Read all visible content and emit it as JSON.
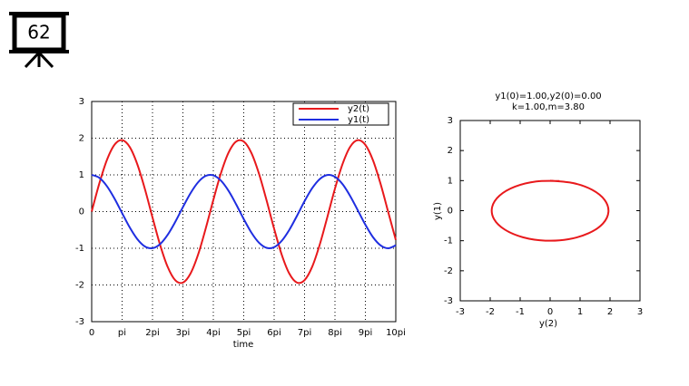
{
  "slide_number": "62",
  "chart_data": [
    {
      "type": "line",
      "xlabel": "time",
      "x": [
        0,
        0.25,
        0.5,
        0.75,
        1,
        1.25,
        1.5,
        1.75,
        2,
        2.25,
        2.5,
        2.75,
        3,
        3.25,
        3.5,
        3.75,
        4,
        4.25,
        4.5,
        4.75,
        5,
        5.25,
        5.5,
        5.75,
        6,
        6.25,
        6.5,
        6.75,
        7,
        7.25,
        7.5,
        7.75,
        8,
        8.25,
        8.5,
        8.75,
        9,
        9.25,
        9.5,
        9.75,
        10
      ],
      "series": [
        {
          "name": "y2(t)",
          "color": "#e8191c",
          "values": [
            0,
            0.764,
            1.405,
            1.822,
            1.947,
            1.76,
            1.29,
            0.614,
            -0.16,
            -0.908,
            -1.51,
            -1.873,
            -1.935,
            -1.688,
            -1.169,
            -0.46,
            0.316,
            1.045,
            1.606,
            1.91,
            1.908,
            1.6,
            1.035,
            0.308,
            -0.47,
            -1.177,
            -1.692,
            -1.935,
            -1.869,
            -1.505,
            -0.898,
            -0.148,
            0.626,
            1.298,
            1.766,
            1.947,
            1.818,
            1.399,
            0.754,
            -0.01,
            -0.772
          ]
        },
        {
          "name": "y1(t)",
          "color": "#1f2ee0",
          "values": [
            1,
            0.92,
            0.693,
            0.355,
            -0.041,
            -0.43,
            -0.749,
            -0.95,
            -0.997,
            -0.885,
            -0.632,
            -0.278,
            0.122,
            0.501,
            0.8,
            0.972,
            0.987,
            0.844,
            0.567,
            0.198,
            -0.203,
            -0.571,
            -0.847,
            -0.988,
            -0.971,
            -0.797,
            -0.497,
            -0.117,
            0.283,
            0.636,
            0.887,
            0.997,
            0.947,
            0.746,
            0.424,
            0.036,
            -0.359,
            -0.697,
            -0.921,
            -1.0,
            -0.918
          ]
        }
      ],
      "xlim": [
        0,
        10
      ],
      "xticks": [
        0,
        {
          "value": 1,
          "label": "pi"
        },
        {
          "value": 2,
          "label": "2pi"
        },
        {
          "value": 3,
          "label": "3pi"
        },
        {
          "value": 4,
          "label": "4pi"
        },
        {
          "value": 5,
          "label": "5pi"
        },
        {
          "value": 6,
          "label": "6pi"
        },
        {
          "value": 7,
          "label": "7pi"
        },
        {
          "value": 8,
          "label": "8pi"
        },
        {
          "value": 9,
          "label": "9pi"
        },
        {
          "value": 10,
          "label": "10pi"
        }
      ],
      "ylim": [
        -3,
        3
      ],
      "yticks": [
        -3,
        -2,
        -1,
        0,
        1,
        2,
        3
      ],
      "grid": true,
      "legend": "upper right"
    },
    {
      "type": "line",
      "title": "y1(0)=1.00,y2(0)=0.00",
      "subtitle": "k=1.00,m=3.80",
      "xlabel": "y(2)",
      "ylabel": "y(1)",
      "color": "#e8191c",
      "x": [
        0,
        0.764,
        1.405,
        1.822,
        1.947,
        1.76,
        1.29,
        0.614,
        -0.16,
        -0.908,
        -1.51,
        -1.873,
        -1.935,
        -1.688,
        -1.169,
        -0.46,
        0.316
      ],
      "values": [
        1,
        0.92,
        0.693,
        0.355,
        -0.041,
        -0.43,
        -0.749,
        -0.95,
        -0.997,
        -0.885,
        -0.632,
        -0.278,
        0.122,
        0.501,
        0.8,
        0.972,
        0.987
      ],
      "xlim": [
        -3,
        3
      ],
      "xticks": [
        -3,
        -2,
        -1,
        0,
        1,
        2,
        3
      ],
      "ylim": [
        -3,
        3
      ],
      "yticks": [
        -3,
        -2,
        -1,
        0,
        1,
        2,
        3
      ],
      "grid": false
    }
  ]
}
